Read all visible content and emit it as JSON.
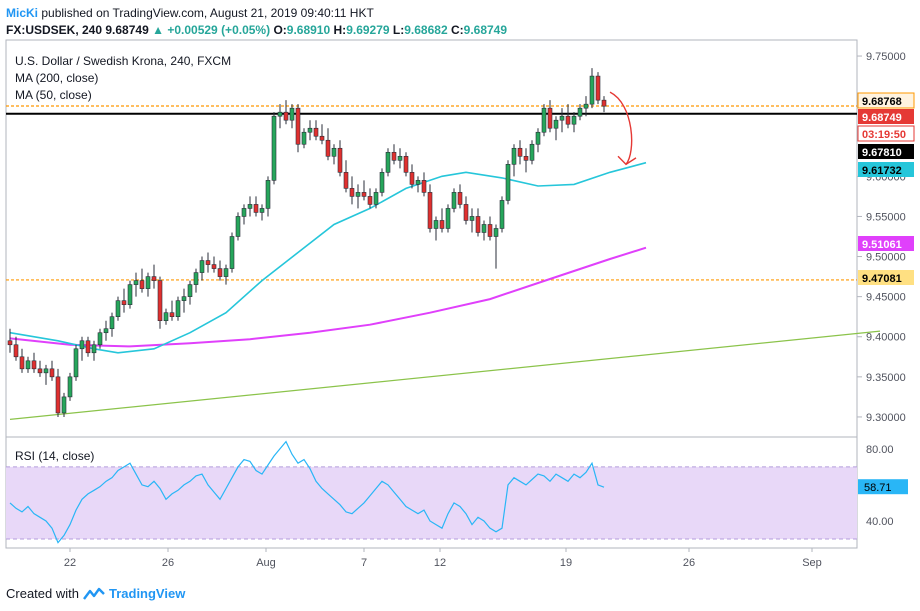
{
  "header": {
    "user": "MicKi",
    "published": "published on TradingView.com, August 21, 2019 09:40:11 HKT",
    "symbol": "FX:USDSEK, 240",
    "last": "9.68749",
    "change_arrow": "▲",
    "change": "+0.00529 (+0.05%)",
    "o_label": "O:",
    "o_value": "9.68910",
    "h_label": "H:",
    "h_value": "9.69279",
    "l_label": "L:",
    "l_value": "9.68682",
    "c_label": "C:",
    "c_value": "9.68749"
  },
  "legend": {
    "title": "U.S. Dollar / Swedish Krona, 240, FXCM",
    "ma200": "MA (200, close)",
    "ma50": "MA (50, close)",
    "rsi": "RSI (14, close)"
  },
  "colors": {
    "up": "#26a69a",
    "down": "#ef5350",
    "candle_up": "#26a65b",
    "candle_down": "#e0302f",
    "ma50": "#26c6da",
    "ma200": "#e040fb",
    "trendline": "#8bc34a",
    "resistance": "#000000",
    "orange_line": "#ff9800",
    "rsi_line": "#29b6f6",
    "rsi_band": "#e8d8f8"
  },
  "chart_data": [
    {
      "type": "candlestick",
      "title": "U.S. Dollar / Swedish Krona, 240, FXCM",
      "x_ticks": [
        "22",
        "26",
        "Aug",
        "7",
        "12",
        "19",
        "26",
        "Sep"
      ],
      "y_ticks": [
        "9.75000",
        "9.70000",
        "9.65000",
        "9.60000",
        "9.55000",
        "9.50000",
        "9.45000",
        "9.40000",
        "9.35000",
        "9.30000"
      ],
      "ylim": [
        9.275,
        9.77
      ],
      "price_labels": [
        {
          "value": "9.68768",
          "kind": "orange-line"
        },
        {
          "value": "9.68749",
          "kind": "last-price"
        },
        {
          "value": "03:19:50",
          "kind": "countdown"
        },
        {
          "value": "9.67810",
          "kind": "resistance"
        },
        {
          "value": "9.61732",
          "kind": "ma50"
        },
        {
          "value": "9.51061",
          "kind": "ma200"
        },
        {
          "value": "9.47081",
          "kind": "support-orange"
        }
      ],
      "levels": {
        "resistance": 9.6781,
        "orange_top": 9.68768,
        "orange_bottom": 9.47081
      },
      "candles": [
        [
          9.395,
          9.41,
          9.38,
          9.39
        ],
        [
          9.39,
          9.4,
          9.37,
          9.375
        ],
        [
          9.375,
          9.385,
          9.355,
          9.36
        ],
        [
          9.36,
          9.375,
          9.355,
          9.37
        ],
        [
          9.37,
          9.38,
          9.355,
          9.36
        ],
        [
          9.36,
          9.37,
          9.35,
          9.355
        ],
        [
          9.355,
          9.365,
          9.34,
          9.36
        ],
        [
          9.36,
          9.37,
          9.345,
          9.35
        ],
        [
          9.35,
          9.36,
          9.3,
          9.305
        ],
        [
          9.305,
          9.33,
          9.3,
          9.325
        ],
        [
          9.325,
          9.355,
          9.32,
          9.35
        ],
        [
          9.35,
          9.39,
          9.345,
          9.385
        ],
        [
          9.385,
          9.4,
          9.37,
          9.395
        ],
        [
          9.395,
          9.4,
          9.375,
          9.38
        ],
        [
          9.38,
          9.395,
          9.37,
          9.39
        ],
        [
          9.39,
          9.41,
          9.385,
          9.405
        ],
        [
          9.405,
          9.42,
          9.395,
          9.41
        ],
        [
          9.41,
          9.43,
          9.4,
          9.425
        ],
        [
          9.425,
          9.45,
          9.42,
          9.445
        ],
        [
          9.445,
          9.46,
          9.43,
          9.44
        ],
        [
          9.44,
          9.47,
          9.435,
          9.465
        ],
        [
          9.465,
          9.48,
          9.45,
          9.47
        ],
        [
          9.47,
          9.485,
          9.455,
          9.46
        ],
        [
          9.46,
          9.48,
          9.45,
          9.475
        ],
        [
          9.475,
          9.49,
          9.46,
          9.47
        ],
        [
          9.47,
          9.475,
          9.41,
          9.42
        ],
        [
          9.42,
          9.435,
          9.415,
          9.43
        ],
        [
          9.43,
          9.445,
          9.42,
          9.425
        ],
        [
          9.425,
          9.45,
          9.42,
          9.445
        ],
        [
          9.445,
          9.46,
          9.43,
          9.45
        ],
        [
          9.45,
          9.47,
          9.44,
          9.465
        ],
        [
          9.465,
          9.485,
          9.455,
          9.48
        ],
        [
          9.48,
          9.5,
          9.47,
          9.495
        ],
        [
          9.495,
          9.505,
          9.48,
          9.49
        ],
        [
          9.49,
          9.5,
          9.48,
          9.485
        ],
        [
          9.485,
          9.495,
          9.47,
          9.475
        ],
        [
          9.475,
          9.49,
          9.465,
          9.485
        ],
        [
          9.485,
          9.53,
          9.48,
          9.525
        ],
        [
          9.525,
          9.555,
          9.52,
          9.55
        ],
        [
          9.55,
          9.565,
          9.54,
          9.56
        ],
        [
          9.56,
          9.575,
          9.55,
          9.565
        ],
        [
          9.565,
          9.575,
          9.55,
          9.555
        ],
        [
          9.555,
          9.565,
          9.545,
          9.56
        ],
        [
          9.56,
          9.6,
          9.55,
          9.595
        ],
        [
          9.595,
          9.68,
          9.59,
          9.675
        ],
        [
          9.675,
          9.69,
          9.66,
          9.68
        ],
        [
          9.68,
          9.695,
          9.665,
          9.67
        ],
        [
          9.67,
          9.69,
          9.66,
          9.685
        ],
        [
          9.685,
          9.69,
          9.63,
          9.64
        ],
        [
          9.64,
          9.66,
          9.635,
          9.655
        ],
        [
          9.655,
          9.67,
          9.645,
          9.66
        ],
        [
          9.66,
          9.67,
          9.645,
          9.65
        ],
        [
          9.65,
          9.665,
          9.64,
          9.645
        ],
        [
          9.645,
          9.66,
          9.62,
          9.625
        ],
        [
          9.625,
          9.64,
          9.615,
          9.635
        ],
        [
          9.635,
          9.645,
          9.6,
          9.605
        ],
        [
          9.605,
          9.62,
          9.58,
          9.585
        ],
        [
          9.585,
          9.6,
          9.565,
          9.575
        ],
        [
          9.575,
          9.59,
          9.56,
          9.58
        ],
        [
          9.58,
          9.595,
          9.57,
          9.575
        ],
        [
          9.575,
          9.585,
          9.56,
          9.565
        ],
        [
          9.565,
          9.585,
          9.56,
          9.58
        ],
        [
          9.58,
          9.61,
          9.575,
          9.605
        ],
        [
          9.605,
          9.635,
          9.6,
          9.63
        ],
        [
          9.63,
          9.64,
          9.615,
          9.62
        ],
        [
          9.62,
          9.635,
          9.61,
          9.625
        ],
        [
          9.625,
          9.63,
          9.6,
          9.605
        ],
        [
          9.605,
          9.615,
          9.585,
          9.59
        ],
        [
          9.59,
          9.6,
          9.58,
          9.595
        ],
        [
          9.595,
          9.605,
          9.575,
          9.58
        ],
        [
          9.58,
          9.59,
          9.53,
          9.535
        ],
        [
          9.535,
          9.55,
          9.52,
          9.545
        ],
        [
          9.545,
          9.56,
          9.53,
          9.535
        ],
        [
          9.535,
          9.565,
          9.53,
          9.56
        ],
        [
          9.56,
          9.585,
          9.555,
          9.58
        ],
        [
          9.58,
          9.59,
          9.56,
          9.565
        ],
        [
          9.565,
          9.575,
          9.54,
          9.545
        ],
        [
          9.545,
          9.56,
          9.53,
          9.55
        ],
        [
          9.55,
          9.56,
          9.525,
          9.53
        ],
        [
          9.53,
          9.545,
          9.52,
          9.54
        ],
        [
          9.54,
          9.55,
          9.52,
          9.525
        ],
        [
          9.525,
          9.54,
          9.485,
          9.535
        ],
        [
          9.535,
          9.575,
          9.53,
          9.57
        ],
        [
          9.57,
          9.62,
          9.565,
          9.615
        ],
        [
          9.615,
          9.64,
          9.6,
          9.635
        ],
        [
          9.635,
          9.645,
          9.615,
          9.625
        ],
        [
          9.625,
          9.635,
          9.605,
          9.62
        ],
        [
          9.62,
          9.645,
          9.615,
          9.64
        ],
        [
          9.64,
          9.66,
          9.63,
          9.655
        ],
        [
          9.655,
          9.69,
          9.65,
          9.685
        ],
        [
          9.685,
          9.695,
          9.655,
          9.66
        ],
        [
          9.66,
          9.675,
          9.645,
          9.67
        ],
        [
          9.67,
          9.685,
          9.655,
          9.675
        ],
        [
          9.675,
          9.69,
          9.66,
          9.665
        ],
        [
          9.665,
          9.68,
          9.655,
          9.675
        ],
        [
          9.675,
          9.69,
          9.67,
          9.685
        ],
        [
          9.685,
          9.7,
          9.675,
          9.69
        ],
        [
          9.69,
          9.735,
          9.685,
          9.725
        ],
        [
          9.725,
          9.73,
          9.69,
          9.695
        ],
        [
          9.695,
          9.7,
          9.68,
          9.6875
        ]
      ],
      "ma50": [
        [
          0,
          9.405
        ],
        [
          8,
          9.395
        ],
        [
          14,
          9.385
        ],
        [
          18,
          9.38
        ],
        [
          24,
          9.385
        ],
        [
          30,
          9.405
        ],
        [
          36,
          9.43
        ],
        [
          42,
          9.47
        ],
        [
          48,
          9.505
        ],
        [
          54,
          9.54
        ],
        [
          60,
          9.56
        ],
        [
          66,
          9.585
        ],
        [
          72,
          9.6
        ],
        [
          76,
          9.605
        ],
        [
          82,
          9.598
        ],
        [
          88,
          9.588
        ],
        [
          94,
          9.59
        ],
        [
          100,
          9.605
        ],
        [
          106,
          9.617
        ]
      ],
      "ma200": [
        [
          0,
          9.398
        ],
        [
          10,
          9.39
        ],
        [
          20,
          9.388
        ],
        [
          30,
          9.392
        ],
        [
          40,
          9.397
        ],
        [
          50,
          9.405
        ],
        [
          60,
          9.415
        ],
        [
          70,
          9.43
        ],
        [
          80,
          9.447
        ],
        [
          90,
          9.472
        ],
        [
          100,
          9.497
        ],
        [
          106,
          9.511
        ]
      ],
      "trendline": [
        [
          0,
          9.297
        ],
        [
          145,
          9.407
        ]
      ],
      "arrow": "red curved arrow pointing down from latest candle"
    },
    {
      "type": "line",
      "title": "RSI (14, close)",
      "y_ticks": [
        "80.00",
        "40.00"
      ],
      "ylim": [
        25,
        86
      ],
      "bands": [
        70,
        30
      ],
      "last_value": "58.71",
      "values": [
        50,
        47,
        45,
        48,
        44,
        42,
        40,
        36,
        28,
        32,
        38,
        46,
        52,
        55,
        57,
        59,
        62,
        64,
        68,
        70,
        72,
        66,
        60,
        59,
        62,
        58,
        52,
        55,
        57,
        60,
        62,
        65,
        66,
        60,
        56,
        52,
        58,
        64,
        70,
        74,
        73,
        68,
        66,
        71,
        76,
        80,
        84,
        77,
        72,
        74,
        69,
        62,
        58,
        55,
        52,
        49,
        45,
        44,
        47,
        50,
        54,
        58,
        62,
        60,
        56,
        52,
        48,
        46,
        44,
        46,
        40,
        38,
        36,
        44,
        50,
        48,
        44,
        38,
        42,
        40,
        36,
        34,
        36,
        60,
        64,
        62,
        60,
        63,
        66,
        65,
        62,
        66,
        64,
        62,
        66,
        64,
        67,
        72,
        60,
        58.71
      ]
    }
  ],
  "x_axis": {
    "labels": [
      "22",
      "26",
      "Aug",
      "7",
      "12",
      "19",
      "26",
      "Sep"
    ]
  },
  "footer": {
    "created_with": "Created with",
    "brand": "TradingView"
  }
}
